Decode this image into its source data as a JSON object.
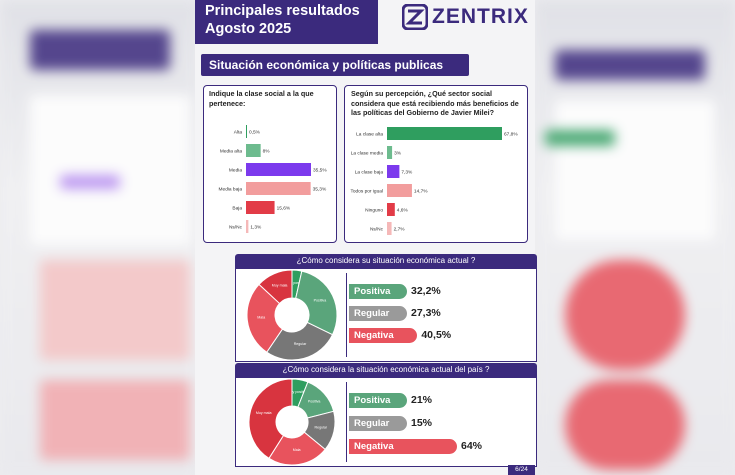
{
  "header": {
    "title_line1": "Principales resultados",
    "title_line2": "Agosto 2025"
  },
  "brand": {
    "name": "ZENTRIX"
  },
  "section_title": "Situación económica y políticas publicas",
  "left_panel": {
    "title": "Indique la clase social a la que pertenece:",
    "bars": [
      {
        "label": "Alta",
        "value": 0.5,
        "text": "0,5%",
        "color": "#2f9e5f"
      },
      {
        "label": "Media alta",
        "value": 8,
        "text": "8%",
        "color": "#6dbb8e"
      },
      {
        "label": "Media",
        "value": 35.5,
        "text": "35,5%",
        "color": "#7c3aed"
      },
      {
        "label": "Media baja",
        "value": 35.3,
        "text": "35,3%",
        "color": "#f29d9d"
      },
      {
        "label": "Baja",
        "value": 15.6,
        "text": "15,6%",
        "color": "#e23b47"
      },
      {
        "label": "Ns/Nc",
        "value": 1.3,
        "text": "1,3%",
        "color": "#f5b8b8"
      }
    ]
  },
  "right_panel": {
    "title": "Según su percepción, ¿Qué sector social considera que está recibiendo más beneficios de las políticas del Gobierno de Javier Milei?",
    "bars": [
      {
        "label": "La clase alta",
        "value": 67.8,
        "text": "67,8%",
        "color": "#2f9e5f"
      },
      {
        "label": "La clase media",
        "value": 3,
        "text": "3%",
        "color": "#6dbb8e"
      },
      {
        "label": "La clase baja",
        "value": 7.3,
        "text": "7,3%",
        "color": "#7c3aed"
      },
      {
        "label": "Todos por igual",
        "value": 14.7,
        "text": "14,7%",
        "color": "#f29d9d"
      },
      {
        "label": "Ninguno",
        "value": 4.6,
        "text": "4,6%",
        "color": "#e23b47"
      },
      {
        "label": "Ns/Nc",
        "value": 2.7,
        "text": "2,7%",
        "color": "#f5b8b8"
      }
    ]
  },
  "q1": {
    "title": "¿Cómo considera su situación económica actual ?",
    "items": [
      {
        "label": "Positiva",
        "value": 32.2,
        "text": "32,2%",
        "color": "#5aa57b"
      },
      {
        "label": "Regular",
        "value": 27.3,
        "text": "27,3%",
        "color": "#9a9a9a"
      },
      {
        "label": "Negativa",
        "value": 40.5,
        "text": "40,5%",
        "color": "#e8535d"
      }
    ],
    "donut": [
      {
        "label": "Muy positiva",
        "value": 3.5,
        "color": "#2f9e5f"
      },
      {
        "label": "Positiva",
        "value": 28.7,
        "color": "#5aa57b"
      },
      {
        "label": "Regular",
        "value": 27.3,
        "color": "#777777"
      },
      {
        "label": "Mala",
        "value": 27.4,
        "color": "#e8535d"
      },
      {
        "label": "Muy mala",
        "value": 13.1,
        "color": "#d8343f"
      }
    ]
  },
  "q2": {
    "title": "¿Cómo considera la situación económica actual del país ?",
    "items": [
      {
        "label": "Positiva",
        "value": 21,
        "text": "21%",
        "color": "#5aa57b"
      },
      {
        "label": "Regular",
        "value": 15,
        "text": "15%",
        "color": "#9a9a9a"
      },
      {
        "label": "Negativa",
        "value": 64,
        "text": "64%",
        "color": "#e8535d"
      }
    ],
    "donut": [
      {
        "label": "Muy positiva",
        "value": 6,
        "color": "#2f9e5f"
      },
      {
        "label": "Positiva",
        "value": 15,
        "color": "#5aa57b"
      },
      {
        "label": "Regular",
        "value": 15,
        "color": "#777777"
      },
      {
        "label": "Mala",
        "value": 23,
        "color": "#e8535d"
      },
      {
        "label": "Muy mala",
        "value": 41,
        "color": "#d8343f"
      }
    ]
  },
  "page_number": "6/24"
}
